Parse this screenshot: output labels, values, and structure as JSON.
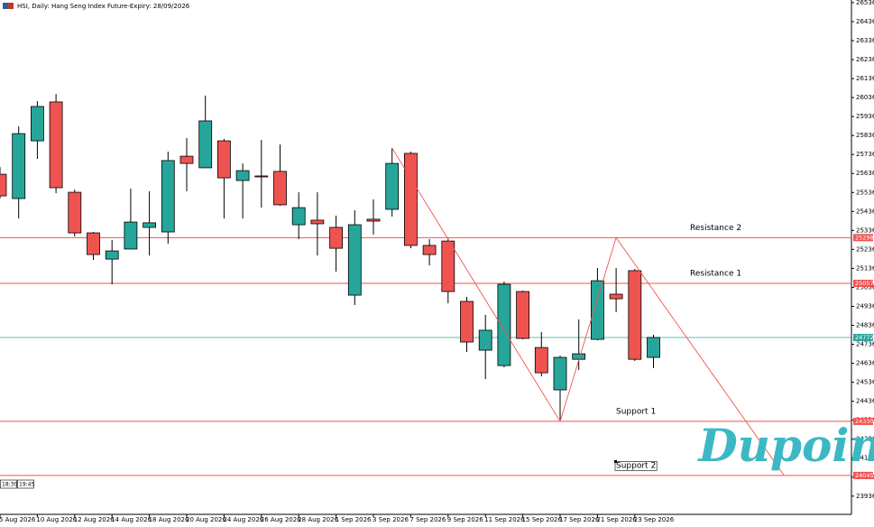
{
  "chart_data": {
    "type": "candlestick",
    "title": "HSI, Daily:  Hang Seng Index Future-Expiry: 28/09/2026",
    "categories": [
      "5 Aug 2026",
      null,
      "10 Aug 2026",
      null,
      "12 Aug 2026",
      null,
      "14 Aug 2026",
      null,
      "18 Aug 2026",
      null,
      "20 Aug 2026",
      null,
      "24 Aug 2026",
      null,
      "26 Aug 2026",
      null,
      "28 Aug 2026",
      null,
      "1 Sep 2026",
      null,
      "3 Sep 2026",
      null,
      "7 Sep 2026",
      null,
      "9 Sep 2026",
      null,
      "11 Sep 2026",
      null,
      "15 Sep 2026",
      null,
      "17 Sep 2026",
      null,
      "21 Sep 2026",
      null,
      "23 Sep 2026",
      null
    ],
    "open": [
      25632,
      25504,
      25808,
      26013,
      25537,
      25323,
      25185,
      25238,
      25352,
      25328,
      25727,
      25666,
      25808,
      25599,
      25623,
      25647,
      25366,
      25390,
      25352,
      24995,
      25395,
      25447,
      25742,
      25257,
      25280,
      24962,
      24705,
      24624,
      25014,
      24719,
      24496,
      24657,
      24762,
      25000,
      25124,
      24667
    ],
    "high": [
      25670,
      25884,
      26017,
      26055,
      25551,
      25328,
      25285,
      25556,
      25542,
      25751,
      25822,
      26046,
      25818,
      25689,
      25813,
      25789,
      25537,
      25537,
      25414,
      25442,
      25499,
      25770,
      25751,
      25290,
      25295,
      24986,
      24891,
      25066,
      25019,
      24800,
      24677,
      24867,
      25138,
      25138,
      25133,
      24786
    ],
    "low": [
      25504,
      25399,
      25713,
      25532,
      25304,
      25181,
      25052,
      25238,
      25204,
      25266,
      25542,
      25666,
      25399,
      25399,
      25456,
      25466,
      25290,
      25204,
      25119,
      24943,
      25314,
      25409,
      25242,
      25152,
      24952,
      24696,
      24553,
      24615,
      24762,
      24567,
      24339,
      24600,
      24757,
      24905,
      24648,
      24610
    ],
    "close": [
      25518,
      25846,
      25989,
      25561,
      25323,
      25209,
      25228,
      25380,
      25376,
      25704,
      25689,
      25913,
      25613,
      25651,
      25618,
      25471,
      25456,
      25371,
      25242,
      25366,
      25385,
      25689,
      25257,
      25209,
      25014,
      24748,
      24810,
      25052,
      24767,
      24586,
      24667,
      24686,
      25071,
      24976,
      24657,
      24772
    ],
    "up_color": "#26a69a",
    "down_color": "#ef5350",
    "ylim": [
      23840,
      26550
    ],
    "yticks": [
      26536,
      26436,
      26336,
      26236,
      26136,
      26036,
      25936,
      25836,
      25736,
      25636,
      25536,
      25436,
      25336,
      25236,
      25136,
      25036,
      24936,
      24836,
      24736,
      24636,
      24536,
      24436,
      24336,
      24236,
      24136,
      24036,
      23936
    ],
    "levels": [
      {
        "label": "Resistance 2",
        "value": 25298,
        "color": "#ef5350"
      },
      {
        "label": "Resistance 1",
        "value": 25057,
        "color": "#ef5350"
      },
      {
        "label": "Support 1",
        "value": 24330,
        "color": "#ef5350"
      },
      {
        "label": "Support 2",
        "value": 24045,
        "color": "#ef5350"
      }
    ],
    "last_price": 24772,
    "last_price_color": "#26a69a",
    "zigzag": {
      "x": [
        21,
        30,
        33,
        42
      ],
      "y": [
        25770,
        24330,
        25298,
        24045
      ],
      "color": "#ef5350"
    },
    "time_labels": [
      "18:30",
      "19:45"
    ],
    "watermark": "Dupoin"
  }
}
